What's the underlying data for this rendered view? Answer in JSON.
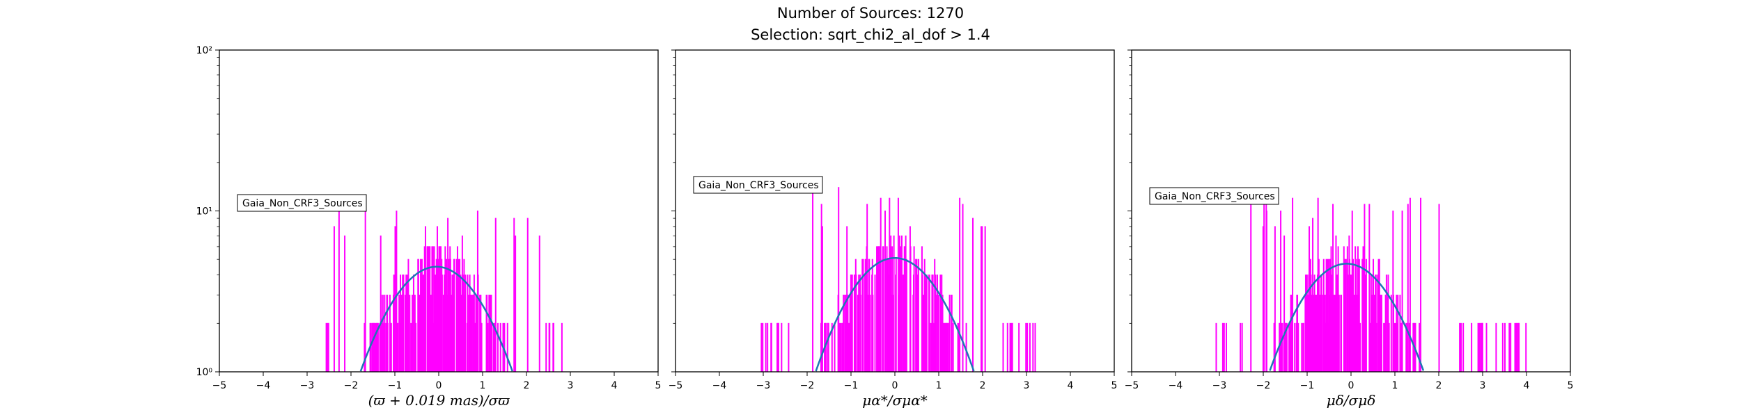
{
  "suptitle": {
    "line1": "Number of Sources: 1270",
    "line2": "Selection: sqrt_chi2_al_dof > 1.4"
  },
  "colors": {
    "histogram": "#ff00ff",
    "fit": "#1f77b4"
  },
  "chart_data": [
    {
      "type": "bar",
      "xlabel": "(ϖ + 0.019 mas)/σϖ",
      "ylabel": "",
      "xlim": [
        -5,
        5
      ],
      "ylim": [
        1,
        100
      ],
      "yscale": "log",
      "xticks": [
        "−5",
        "−4",
        "−3",
        "−2",
        "−1",
        "0",
        "1",
        "2",
        "3",
        "4",
        "5"
      ],
      "yticks": [
        "10⁰",
        "10¹",
        "10²"
      ],
      "legend": {
        "text": "Gaia_Non_CRF3_Sources",
        "loc": "center-left"
      },
      "hist_range": [
        -2.6,
        2.8
      ],
      "hist_step": 0.01,
      "hist_seed": 11,
      "hist_peak": 11,
      "fit": {
        "amplitude": 4.5,
        "mu": -0.05,
        "sigma": 1.0
      }
    },
    {
      "type": "bar",
      "xlabel": "μα*/σμα*",
      "ylabel": "",
      "xlim": [
        -5,
        5
      ],
      "ylim": [
        1,
        100
      ],
      "yscale": "log",
      "xticks": [
        "−5",
        "−4",
        "−3",
        "−2",
        "−1",
        "0",
        "1",
        "2",
        "3",
        "4",
        "5"
      ],
      "yticks": [],
      "legend": {
        "text": "Gaia_Non_CRF3_Sources",
        "loc": "center-left"
      },
      "hist_range": [
        -3.2,
        3.2
      ],
      "hist_step": 0.01,
      "hist_seed": 29,
      "hist_peak": 14,
      "fit": {
        "amplitude": 5.1,
        "mu": 0.0,
        "sigma": 1.0
      }
    },
    {
      "type": "bar",
      "xlabel": "μδ/σμδ",
      "ylabel": "",
      "xlim": [
        -5,
        5
      ],
      "ylim": [
        1,
        100
      ],
      "yscale": "log",
      "xticks": [
        "−5",
        "−4",
        "−3",
        "−2",
        "−1",
        "0",
        "1",
        "2",
        "3",
        "4",
        "5"
      ],
      "yticks": [],
      "legend": {
        "text": "Gaia_Non_CRF3_Sources",
        "loc": "center-left"
      },
      "hist_range": [
        -3.1,
        4.0
      ],
      "hist_step": 0.01,
      "hist_seed": 47,
      "hist_peak": 12,
      "fit": {
        "amplitude": 4.7,
        "mu": -0.1,
        "sigma": 1.0
      }
    }
  ]
}
